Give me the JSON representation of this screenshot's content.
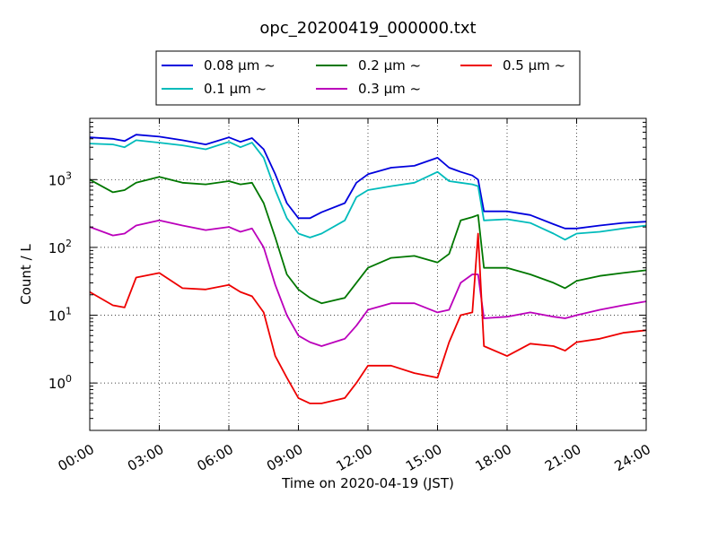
{
  "chart_data": {
    "type": "line",
    "title": "opc_20200419_000000.txt",
    "xlabel": "Time on 2020-04-19 (JST)",
    "ylabel": "Count / L",
    "xlim": [
      "00:00",
      "24:00"
    ],
    "ylim": [
      0.2,
      8000
    ],
    "yscale": "log",
    "grid": true,
    "legend_position": "top-center",
    "x_ticks": [
      "00:00",
      "03:00",
      "06:00",
      "09:00",
      "12:00",
      "15:00",
      "18:00",
      "21:00",
      "24:00"
    ],
    "y_ticks": [
      {
        "value": 1,
        "label": "10",
        "exp": "0"
      },
      {
        "value": 10,
        "label": "10",
        "exp": "1"
      },
      {
        "value": 100,
        "label": "10",
        "exp": "2"
      },
      {
        "value": 1000,
        "label": "10",
        "exp": "3"
      }
    ],
    "x": [
      "00:00",
      "01:00",
      "01:30",
      "02:00",
      "03:00",
      "04:00",
      "05:00",
      "06:00",
      "06:30",
      "07:00",
      "07:30",
      "08:00",
      "08:30",
      "09:00",
      "09:30",
      "10:00",
      "11:00",
      "11:30",
      "12:00",
      "13:00",
      "14:00",
      "15:00",
      "15:30",
      "16:00",
      "16:30",
      "16:45",
      "17:00",
      "18:00",
      "19:00",
      "20:00",
      "20:30",
      "21:00",
      "22:00",
      "23:00",
      "24:00"
    ],
    "series": [
      {
        "name": "0.08 μm ~",
        "color": "#0000dd",
        "values": [
          4200,
          4000,
          3700,
          4600,
          4300,
          3800,
          3300,
          4200,
          3600,
          4100,
          2800,
          1200,
          450,
          270,
          270,
          330,
          450,
          900,
          1200,
          1500,
          1600,
          2100,
          1500,
          1300,
          1150,
          1000,
          340,
          340,
          300,
          220,
          190,
          190,
          210,
          230,
          240
        ]
      },
      {
        "name": "0.1 μm ~",
        "color": "#00bbbb",
        "values": [
          3400,
          3300,
          3000,
          3800,
          3500,
          3200,
          2800,
          3600,
          3000,
          3500,
          2100,
          700,
          270,
          160,
          140,
          160,
          250,
          550,
          700,
          800,
          900,
          1300,
          950,
          900,
          850,
          800,
          250,
          260,
          230,
          160,
          130,
          160,
          170,
          190,
          210
        ]
      },
      {
        "name": "0.2 μm ~",
        "color": "#007700",
        "values": [
          1000,
          650,
          700,
          900,
          1100,
          900,
          850,
          950,
          850,
          900,
          450,
          140,
          40,
          24,
          18,
          15,
          18,
          30,
          50,
          70,
          75,
          60,
          80,
          250,
          280,
          300,
          50,
          50,
          40,
          30,
          25,
          32,
          38,
          42,
          46
        ]
      },
      {
        "name": "0.3 μm ~",
        "color": "#bb00bb",
        "values": [
          200,
          150,
          160,
          210,
          250,
          210,
          180,
          200,
          170,
          190,
          100,
          28,
          10,
          5,
          4,
          3.5,
          4.5,
          7,
          12,
          15,
          15,
          11,
          12,
          30,
          40,
          40,
          9,
          9.5,
          11,
          9.5,
          9,
          10,
          12,
          14,
          16
        ]
      },
      {
        "name": "0.5 μm ~",
        "color": "#ee0000",
        "values": [
          22,
          14,
          13,
          36,
          42,
          25,
          24,
          28,
          22,
          19,
          11,
          2.5,
          1.2,
          0.6,
          0.5,
          0.5,
          0.6,
          1,
          1.8,
          1.8,
          1.4,
          1.2,
          4,
          10,
          11,
          160,
          3.5,
          2.5,
          3.8,
          3.5,
          3,
          4,
          4.5,
          5.5,
          6
        ]
      }
    ]
  }
}
